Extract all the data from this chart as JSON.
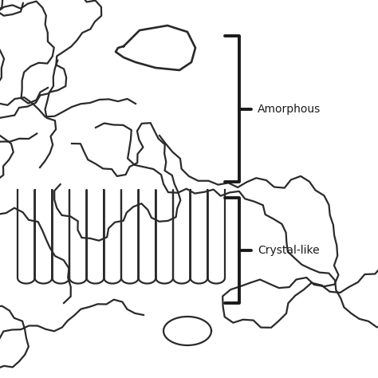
{
  "bg_color": "#ffffff",
  "line_color": "#2a2a2a",
  "line_width": 1.6,
  "bracket_color": "#1a1a1a",
  "bracket_lw": 2.8,
  "label_amorphous": "Amorphous",
  "label_crystal": "Crystal-like",
  "label_fontsize": 10,
  "fig_width": 4.74,
  "fig_height": 4.74,
  "dpi": 100
}
